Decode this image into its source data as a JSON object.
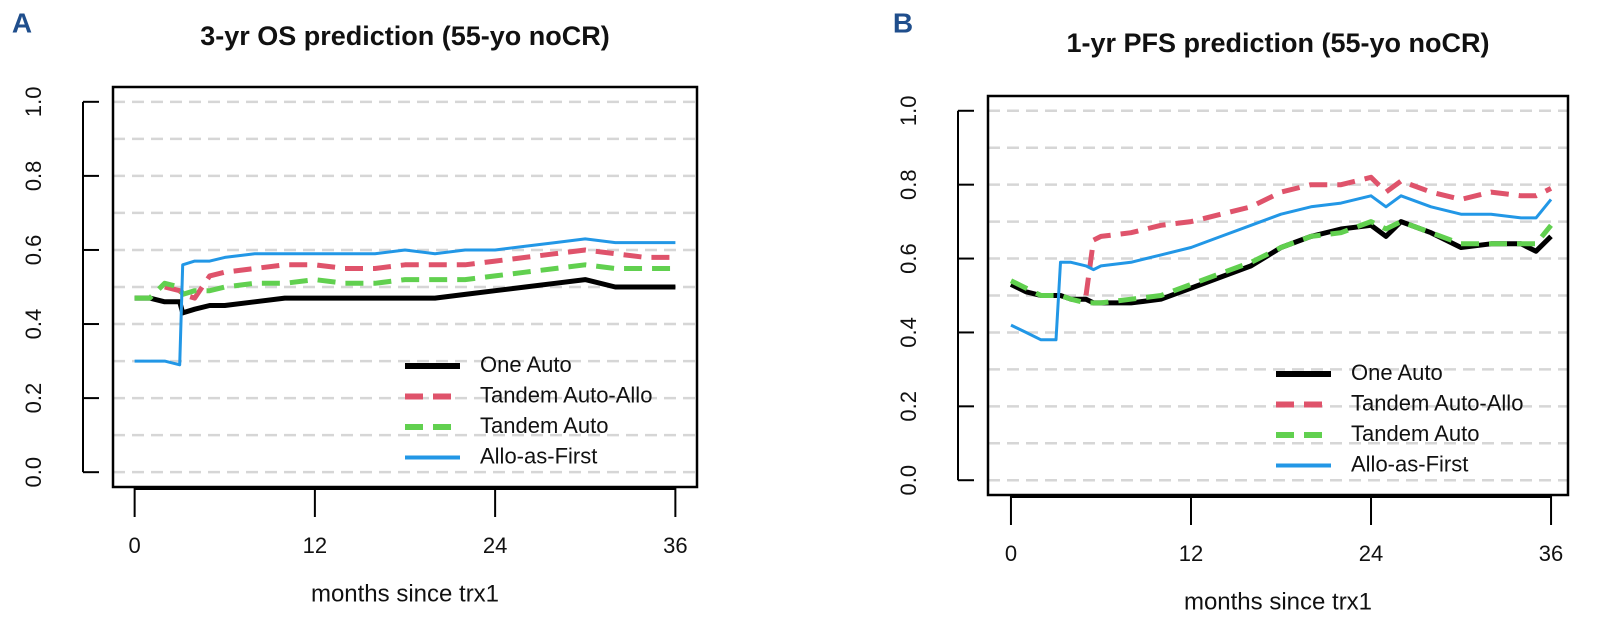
{
  "chart_data": [
    {
      "type": "line",
      "panel_label": "A",
      "title": "3-yr  OS prediction (55-yo noCR)",
      "x_label": "months since trx1",
      "xlim": [
        -1.44,
        37.44
      ],
      "ylim": [
        -0.04,
        1.04
      ],
      "xticks": [
        0,
        12,
        24,
        36
      ],
      "yticks": [
        {
          "value": 0,
          "label": "0.0"
        },
        {
          "value": 0.2,
          "label": "0.2"
        },
        {
          "value": 0.4,
          "label": "0.4"
        },
        {
          "value": 0.6,
          "label": "0.6"
        },
        {
          "value": 0.8,
          "label": "0.8"
        },
        {
          "value": 1,
          "label": "1.0"
        }
      ],
      "ygrid": [
        0,
        0.1,
        0.2,
        0.3,
        0.4,
        0.5,
        0.6,
        0.7,
        0.8,
        0.9,
        1.0
      ],
      "legend": "bottom-right",
      "x": [
        0,
        1,
        2,
        3,
        3.2,
        4,
        5,
        6,
        8,
        10,
        12,
        14,
        16,
        18,
        20,
        22,
        24,
        26,
        28,
        30,
        32,
        34,
        36
      ],
      "series": [
        {
          "name": "One Auto",
          "color": "#000000",
          "linestyle": "solid",
          "width": 5,
          "values": [
            0.47,
            0.47,
            0.46,
            0.46,
            0.43,
            0.44,
            0.45,
            0.45,
            0.46,
            0.47,
            0.47,
            0.47,
            0.47,
            0.47,
            0.47,
            0.48,
            0.49,
            0.5,
            0.51,
            0.52,
            0.5,
            0.5,
            0.5
          ]
        },
        {
          "name": "Tandem Auto-Allo",
          "color": "#df536b",
          "linestyle": "dashed",
          "width": 5,
          "values": [
            null,
            null,
            0.5,
            0.49,
            0.48,
            0.47,
            0.53,
            0.54,
            0.55,
            0.56,
            0.56,
            0.55,
            0.55,
            0.56,
            0.56,
            0.56,
            0.57,
            0.58,
            0.59,
            0.6,
            0.59,
            0.58,
            0.58
          ]
        },
        {
          "name": "Tandem Auto",
          "color": "#61d04f",
          "linestyle": "dashed",
          "width": 5,
          "values": [
            0.47,
            0.47,
            0.51,
            0.5,
            0.48,
            0.49,
            0.49,
            0.5,
            0.51,
            0.51,
            0.52,
            0.51,
            0.51,
            0.52,
            0.52,
            0.52,
            0.53,
            0.54,
            0.55,
            0.56,
            0.55,
            0.55,
            0.55
          ]
        },
        {
          "name": "Allo-as-First",
          "color": "#2297e6",
          "linestyle": "solid",
          "width": 3,
          "values": [
            0.3,
            0.3,
            0.3,
            0.29,
            0.56,
            0.57,
            0.57,
            0.58,
            0.59,
            0.59,
            0.59,
            0.59,
            0.59,
            0.6,
            0.59,
            0.6,
            0.6,
            0.61,
            0.62,
            0.63,
            0.62,
            0.62,
            0.62
          ]
        }
      ]
    },
    {
      "type": "line",
      "panel_label": "B",
      "title": "1-yr PFS prediction (55-yo noCR)",
      "x_label": "months since trx1",
      "xlim": [
        -1.53,
        37.13
      ],
      "ylim": [
        -0.04,
        1.04
      ],
      "xticks": [
        0,
        12,
        24,
        36
      ],
      "yticks": [
        {
          "value": 0,
          "label": "0.0"
        },
        {
          "value": 0.2,
          "label": "0.2"
        },
        {
          "value": 0.4,
          "label": "0.4"
        },
        {
          "value": 0.6,
          "label": "0.6"
        },
        {
          "value": 0.8,
          "label": "0.8"
        },
        {
          "value": 1,
          "label": "1.0"
        }
      ],
      "ygrid": [
        0,
        0.1,
        0.2,
        0.3,
        0.4,
        0.5,
        0.6,
        0.7,
        0.8,
        0.9,
        1.0
      ],
      "legend": "bottom-right",
      "x": [
        0,
        1,
        2,
        3,
        3.3,
        4,
        5,
        5.5,
        6,
        8,
        10,
        12,
        14,
        16,
        18,
        20,
        22,
        24,
        25,
        26,
        28,
        30,
        32,
        34,
        35,
        36
      ],
      "series": [
        {
          "name": "One Auto",
          "color": "#000000",
          "linestyle": "solid",
          "width": 5,
          "values": [
            0.53,
            0.51,
            0.5,
            0.5,
            0.5,
            0.49,
            0.49,
            0.48,
            0.48,
            0.48,
            0.49,
            0.52,
            0.55,
            0.58,
            0.63,
            0.66,
            0.68,
            0.69,
            0.66,
            0.7,
            0.67,
            0.63,
            0.64,
            0.64,
            0.62,
            0.66
          ]
        },
        {
          "name": "Tandem Auto-Allo",
          "color": "#df536b",
          "linestyle": "dashed",
          "width": 5,
          "values": [
            null,
            null,
            null,
            null,
            null,
            null,
            0.5,
            0.65,
            0.66,
            0.67,
            0.69,
            0.7,
            0.72,
            0.74,
            0.78,
            0.8,
            0.8,
            0.82,
            0.78,
            0.81,
            0.78,
            0.76,
            0.78,
            0.77,
            0.77,
            0.79
          ]
        },
        {
          "name": "Tandem Auto",
          "color": "#61d04f",
          "linestyle": "dashed",
          "width": 5,
          "values": [
            0.54,
            0.52,
            0.5,
            0.5,
            0.5,
            0.49,
            0.48,
            0.48,
            0.48,
            0.49,
            0.5,
            0.53,
            0.56,
            0.59,
            0.63,
            0.66,
            0.67,
            0.7,
            0.68,
            0.7,
            0.67,
            0.64,
            0.64,
            0.64,
            0.64,
            0.69
          ]
        },
        {
          "name": "Allo-as-First",
          "color": "#2297e6",
          "linestyle": "solid",
          "width": 3,
          "values": [
            0.42,
            0.4,
            0.38,
            0.38,
            0.59,
            0.59,
            0.58,
            0.57,
            0.58,
            0.59,
            0.61,
            0.63,
            0.66,
            0.69,
            0.72,
            0.74,
            0.75,
            0.77,
            0.74,
            0.77,
            0.74,
            0.72,
            0.72,
            0.71,
            0.71,
            0.76
          ]
        }
      ]
    }
  ]
}
